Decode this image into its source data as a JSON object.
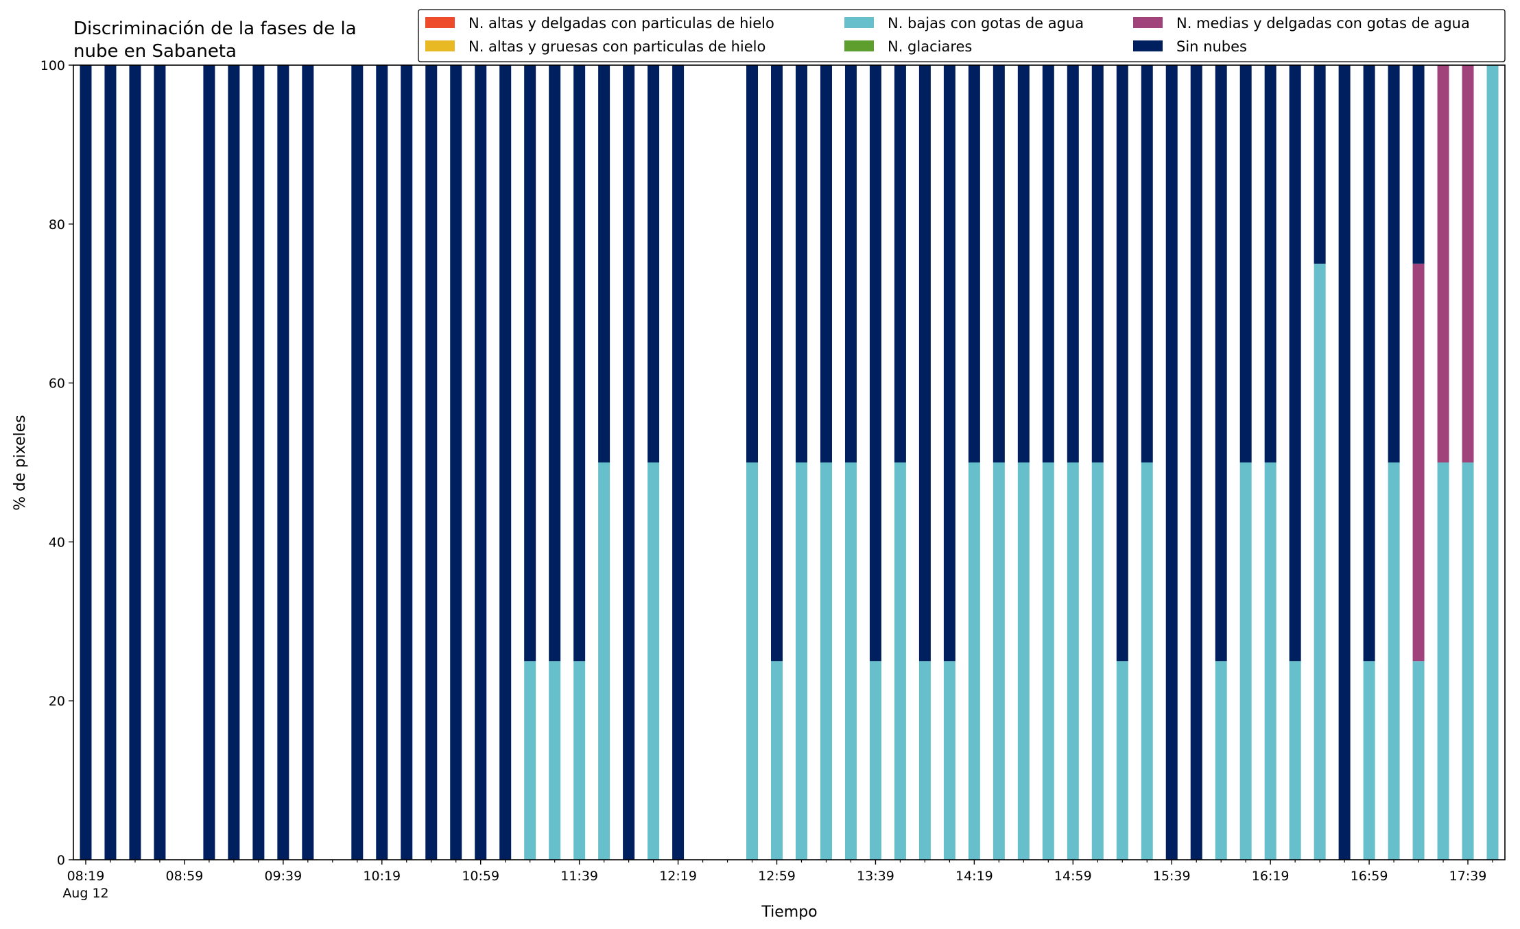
{
  "chart_data": {
    "type": "bar",
    "stacked": true,
    "title_lines": [
      "Discriminación de la fases de la",
      "nube en Sabaneta"
    ],
    "xlabel": "Tiempo",
    "ylabel": "% de pixeles",
    "ylim": [
      0,
      100
    ],
    "yticks": [
      0,
      20,
      40,
      60,
      80,
      100
    ],
    "grid": false,
    "legend_position": "top-right",
    "x_range_minutes": [
      494,
      1074
    ],
    "major_ticks": [
      {
        "label": "08:19",
        "sublabel": "Aug 12",
        "minute": 499
      },
      {
        "label": "08:59",
        "minute": 539
      },
      {
        "label": "09:39",
        "minute": 579
      },
      {
        "label": "10:19",
        "minute": 619
      },
      {
        "label": "10:59",
        "minute": 659
      },
      {
        "label": "11:39",
        "minute": 699
      },
      {
        "label": "12:19",
        "minute": 739
      },
      {
        "label": "12:59",
        "minute": 779
      },
      {
        "label": "13:39",
        "minute": 819
      },
      {
        "label": "14:19",
        "minute": 859
      },
      {
        "label": "14:59",
        "minute": 899
      },
      {
        "label": "15:39",
        "minute": 939
      },
      {
        "label": "16:19",
        "minute": 979
      },
      {
        "label": "16:59",
        "minute": 1019
      },
      {
        "label": "17:39",
        "minute": 1059
      }
    ],
    "legend": [
      {
        "key": "alt_delg",
        "label": "N. altas y delgadas con particulas de hielo",
        "color": "#EE4B2B"
      },
      {
        "key": "alt_grue",
        "label": "N. altas y gruesas con particulas de hielo",
        "color": "#E8B923"
      },
      {
        "key": "bajas",
        "label": "N. bajas con gotas de agua",
        "color": "#67BFCB"
      },
      {
        "key": "glaciares",
        "label": "N. glaciares",
        "color": "#5E9E2E"
      },
      {
        "key": "medias",
        "label": "N. medias y delgadas con gotas de agua",
        "color": "#A0437A"
      },
      {
        "key": "sin",
        "label": "Sin nubes",
        "color": "#001F5E"
      }
    ],
    "stack_order": [
      "bajas",
      "medias",
      "sin"
    ],
    "categories": [
      "08:19",
      "08:29",
      "08:39",
      "08:49",
      "09:09",
      "09:19",
      "09:29",
      "09:39",
      "09:49",
      "10:09",
      "10:19",
      "10:29",
      "10:39",
      "10:49",
      "10:59",
      "11:09",
      "11:19",
      "11:29",
      "11:39",
      "11:49",
      "11:59",
      "12:09",
      "12:19",
      "12:49",
      "12:59",
      "13:09",
      "13:19",
      "13:29",
      "13:39",
      "13:49",
      "13:59",
      "14:09",
      "14:19",
      "14:29",
      "14:39",
      "14:49",
      "14:59",
      "15:09",
      "15:19",
      "15:29",
      "15:39",
      "15:49",
      "15:59",
      "16:09",
      "16:19",
      "16:29",
      "16:39",
      "16:49",
      "16:59",
      "17:09",
      "17:19",
      "17:29",
      "17:39",
      "17:49"
    ],
    "series": [
      {
        "key": "bajas",
        "name": "N. bajas con gotas de agua",
        "values": [
          0,
          0,
          0,
          0,
          0,
          0,
          0,
          0,
          0,
          0,
          0,
          0,
          0,
          0,
          0,
          0,
          25,
          25,
          25,
          50,
          0,
          50,
          0,
          50,
          25,
          50,
          50,
          50,
          25,
          50,
          25,
          25,
          50,
          50,
          50,
          50,
          50,
          50,
          25,
          50,
          0,
          0,
          25,
          50,
          50,
          25,
          75,
          0,
          25,
          50,
          25,
          50,
          50,
          100
        ]
      },
      {
        "key": "medias",
        "name": "N. medias y delgadas con gotas de agua",
        "values": [
          0,
          0,
          0,
          0,
          0,
          0,
          0,
          0,
          0,
          0,
          0,
          0,
          0,
          0,
          0,
          0,
          0,
          0,
          0,
          0,
          0,
          0,
          0,
          0,
          0,
          0,
          0,
          0,
          0,
          0,
          0,
          0,
          0,
          0,
          0,
          0,
          0,
          0,
          0,
          0,
          0,
          0,
          0,
          0,
          0,
          0,
          0,
          0,
          0,
          0,
          50,
          50,
          50,
          0
        ]
      },
      {
        "key": "sin",
        "name": "Sin nubes",
        "values": [
          100,
          100,
          100,
          100,
          100,
          100,
          100,
          100,
          100,
          100,
          100,
          100,
          100,
          100,
          100,
          100,
          75,
          75,
          75,
          50,
          100,
          50,
          100,
          50,
          75,
          50,
          50,
          50,
          75,
          50,
          75,
          75,
          50,
          50,
          50,
          50,
          50,
          50,
          75,
          50,
          100,
          100,
          75,
          50,
          50,
          75,
          25,
          100,
          75,
          50,
          25,
          0,
          0,
          0
        ]
      }
    ]
  }
}
